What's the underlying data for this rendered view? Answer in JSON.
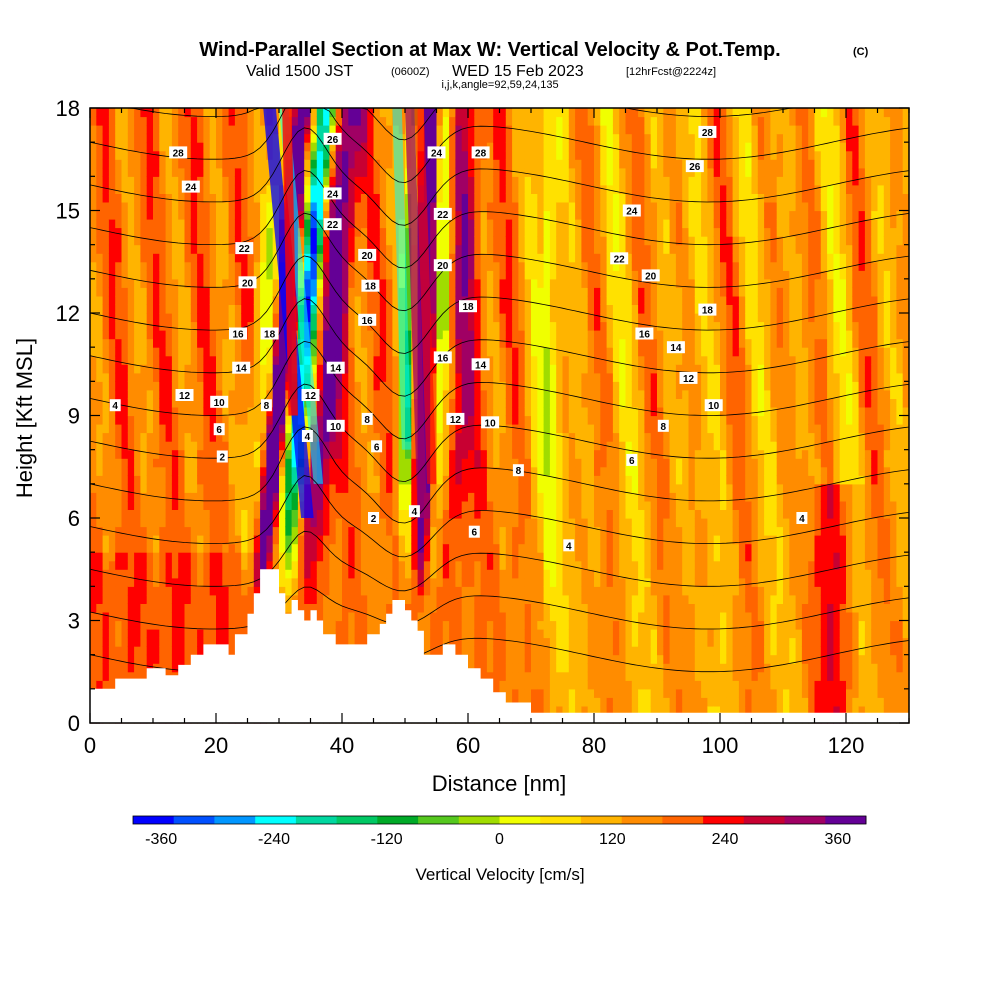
{
  "header": {
    "title": "Wind-Parallel Section at Max W: Vertical Velocity & Pot.Temp.",
    "title_suffix": "(C)",
    "valid_prefix": "Valid 1500 JST",
    "valid_utc": "(0600Z)",
    "valid_date": "WED 15 Feb 2023",
    "forecast": "[12hrFcst@2224z]",
    "indices": "i,j,k,angle=92,59,24,135"
  },
  "chart_data": {
    "type": "heatmap",
    "title": "Wind-Parallel Section at Max W: Vertical Velocity & Pot.Temp.",
    "xlabel": "Distance [nm]",
    "ylabel": "Height [Kft MSL]",
    "xlim": [
      0,
      130
    ],
    "ylim": [
      0,
      18
    ],
    "xticks": [
      "0",
      "20",
      "40",
      "60",
      "80",
      "100",
      "120"
    ],
    "xtick_values": [
      0,
      20,
      40,
      60,
      80,
      100,
      120
    ],
    "yticks": [
      "0",
      "3",
      "6",
      "9",
      "12",
      "15",
      "18"
    ],
    "ytick_values": [
      0,
      3,
      6,
      9,
      12,
      15,
      18
    ],
    "colorbar": {
      "title": "Vertical Velocity [cm/s]",
      "min": -390,
      "max": 390,
      "step": 30,
      "tick_labels": [
        "-360",
        "-240",
        "-120",
        "0",
        "120",
        "240",
        "360"
      ],
      "tick_values": [
        -360,
        -240,
        -120,
        0,
        120,
        240,
        360
      ],
      "colors": [
        "#0000ff",
        "#0050ff",
        "#0096ff",
        "#00ffff",
        "#00d7a0",
        "#00c864",
        "#00aa28",
        "#55c81e",
        "#a0dc00",
        "#f0ff00",
        "#ffe100",
        "#ffb400",
        "#ff8c00",
        "#ff6400",
        "#ff0000",
        "#c80032",
        "#a00064",
        "#640096"
      ]
    },
    "terrain_kft": [
      [
        0,
        1.0
      ],
      [
        4,
        1.0
      ],
      [
        4,
        1.3
      ],
      [
        9,
        1.3
      ],
      [
        9,
        1.6
      ],
      [
        12,
        1.6
      ],
      [
        12,
        1.4
      ],
      [
        14,
        1.4
      ],
      [
        14,
        1.7
      ],
      [
        16,
        1.7
      ],
      [
        16,
        2.0
      ],
      [
        18,
        2.0
      ],
      [
        18,
        2.3
      ],
      [
        22,
        2.3
      ],
      [
        22,
        2.0
      ],
      [
        23,
        2.0
      ],
      [
        23,
        2.6
      ],
      [
        25,
        2.6
      ],
      [
        25,
        3.2
      ],
      [
        26,
        3.2
      ],
      [
        26,
        3.8
      ],
      [
        27,
        3.8
      ],
      [
        27,
        4.5
      ],
      [
        30,
        4.5
      ],
      [
        30,
        3.8
      ],
      [
        31,
        3.8
      ],
      [
        31,
        3.2
      ],
      [
        32,
        3.2
      ],
      [
        32,
        3.6
      ],
      [
        33,
        3.6
      ],
      [
        33,
        3.3
      ],
      [
        34,
        3.3
      ],
      [
        34,
        3.0
      ],
      [
        35,
        3.0
      ],
      [
        35,
        3.3
      ],
      [
        36,
        3.3
      ],
      [
        36,
        3.0
      ],
      [
        37,
        3.0
      ],
      [
        37,
        2.6
      ],
      [
        39,
        2.6
      ],
      [
        39,
        2.3
      ],
      [
        44,
        2.3
      ],
      [
        44,
        2.6
      ],
      [
        46,
        2.6
      ],
      [
        46,
        2.9
      ],
      [
        47,
        2.9
      ],
      [
        47,
        3.2
      ],
      [
        48,
        3.2
      ],
      [
        48,
        3.6
      ],
      [
        50,
        3.6
      ],
      [
        50,
        3.3
      ],
      [
        51,
        3.3
      ],
      [
        51,
        3.0
      ],
      [
        52,
        3.0
      ],
      [
        52,
        2.7
      ],
      [
        53,
        2.7
      ],
      [
        53,
        2.0
      ],
      [
        56,
        2.0
      ],
      [
        56,
        2.3
      ],
      [
        58,
        2.3
      ],
      [
        58,
        2.0
      ],
      [
        60,
        2.0
      ],
      [
        60,
        1.6
      ],
      [
        62,
        1.6
      ],
      [
        62,
        1.3
      ],
      [
        64,
        1.3
      ],
      [
        64,
        0.9
      ],
      [
        66,
        0.9
      ],
      [
        66,
        0.6
      ],
      [
        70,
        0.6
      ],
      [
        70,
        0.3
      ],
      [
        130,
        0.3
      ]
    ],
    "theta_levels_c": [
      2,
      4,
      6,
      8,
      10,
      12,
      14,
      16,
      18,
      20,
      22,
      24,
      26,
      28
    ],
    "contour_labels": [
      {
        "text": "28",
        "x": 14,
        "y": 16.7
      },
      {
        "text": "24",
        "x": 16,
        "y": 15.7
      },
      {
        "text": "22",
        "x": 24.5,
        "y": 13.9
      },
      {
        "text": "20",
        "x": 25,
        "y": 12.9
      },
      {
        "text": "16",
        "x": 23.5,
        "y": 11.4
      },
      {
        "text": "18",
        "x": 28.5,
        "y": 11.4
      },
      {
        "text": "14",
        "x": 24,
        "y": 10.4
      },
      {
        "text": "12",
        "x": 15,
        "y": 9.6
      },
      {
        "text": "10",
        "x": 20.5,
        "y": 9.4
      },
      {
        "text": "8",
        "x": 28,
        "y": 9.3
      },
      {
        "text": "6",
        "x": 20.5,
        "y": 8.6
      },
      {
        "text": "4",
        "x": 4,
        "y": 9.3
      },
      {
        "text": "2",
        "x": 21,
        "y": 7.8
      },
      {
        "text": "12",
        "x": 35,
        "y": 9.6
      },
      {
        "text": "4",
        "x": 34.5,
        "y": 8.4
      },
      {
        "text": "14",
        "x": 39,
        "y": 10.4
      },
      {
        "text": "10",
        "x": 39,
        "y": 8.7
      },
      {
        "text": "8",
        "x": 44,
        "y": 8.9
      },
      {
        "text": "6",
        "x": 45.5,
        "y": 8.1
      },
      {
        "text": "2",
        "x": 45,
        "y": 6.0
      },
      {
        "text": "26",
        "x": 38.5,
        "y": 17.1
      },
      {
        "text": "24",
        "x": 38.5,
        "y": 15.5
      },
      {
        "text": "22",
        "x": 38.5,
        "y": 14.6
      },
      {
        "text": "20",
        "x": 44,
        "y": 13.7
      },
      {
        "text": "18",
        "x": 44.5,
        "y": 12.8
      },
      {
        "text": "16",
        "x": 44,
        "y": 11.8
      },
      {
        "text": "24",
        "x": 55,
        "y": 16.7
      },
      {
        "text": "28",
        "x": 62,
        "y": 16.7
      },
      {
        "text": "22",
        "x": 56,
        "y": 14.9
      },
      {
        "text": "20",
        "x": 56,
        "y": 13.4
      },
      {
        "text": "18",
        "x": 60,
        "y": 12.2
      },
      {
        "text": "16",
        "x": 56,
        "y": 10.7
      },
      {
        "text": "14",
        "x": 62,
        "y": 10.5
      },
      {
        "text": "12",
        "x": 58,
        "y": 8.9
      },
      {
        "text": "10",
        "x": 63.5,
        "y": 8.8
      },
      {
        "text": "8",
        "x": 68,
        "y": 7.4
      },
      {
        "text": "6",
        "x": 61,
        "y": 5.6
      },
      {
        "text": "4",
        "x": 51.5,
        "y": 6.2
      },
      {
        "text": "4",
        "x": 76,
        "y": 5.2
      },
      {
        "text": "28",
        "x": 98,
        "y": 17.3
      },
      {
        "text": "26",
        "x": 96,
        "y": 16.3
      },
      {
        "text": "24",
        "x": 86,
        "y": 15.0
      },
      {
        "text": "22",
        "x": 84,
        "y": 13.6
      },
      {
        "text": "20",
        "x": 89,
        "y": 13.1
      },
      {
        "text": "18",
        "x": 98,
        "y": 12.1
      },
      {
        "text": "16",
        "x": 88,
        "y": 11.4
      },
      {
        "text": "14",
        "x": 93,
        "y": 11.0
      },
      {
        "text": "12",
        "x": 95,
        "y": 10.1
      },
      {
        "text": "10",
        "x": 99,
        "y": 9.3
      },
      {
        "text": "8",
        "x": 91,
        "y": 8.7
      },
      {
        "text": "6",
        "x": 86,
        "y": 7.7
      },
      {
        "text": "4",
        "x": 113,
        "y": 6.0
      }
    ]
  }
}
